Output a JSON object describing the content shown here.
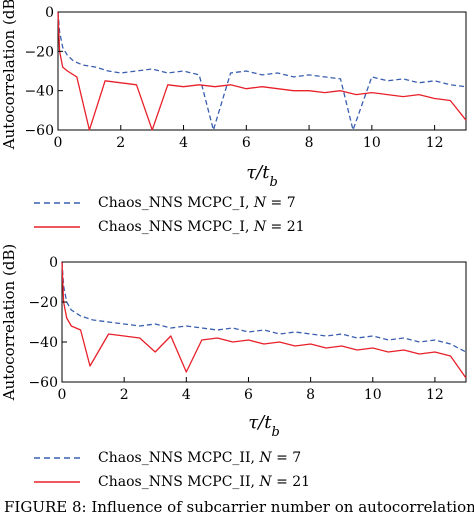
{
  "caption": "FIGURE 8: Influence of subcarrier number on autocorrelation.",
  "chart_data": [
    {
      "type": "line",
      "ylabel": "Autocorrelation (dB)",
      "xlabel": "τ/t_b",
      "xlim": [
        0,
        13
      ],
      "ylim": [
        -60,
        0
      ],
      "xticks": [
        "0",
        "2",
        "4",
        "6",
        "8",
        "10",
        "12"
      ],
      "yticks": [
        "0",
        "-20",
        "-40",
        "-60"
      ],
      "grid": false,
      "legend_position": "below",
      "legend": [
        "Chaos_NNS MCPC_I, N = 7",
        "Chaos_NNS MCPC_I, N = 21"
      ],
      "series": [
        {
          "name": "Chaos_NNS MCPC_I, N = 7",
          "color": "#3a5fb0",
          "style": "dashed",
          "x": [
            0,
            0.05,
            0.15,
            0.3,
            0.5,
            0.8,
            1.2,
            1.6,
            2,
            2.5,
            3,
            3.5,
            4,
            4.5,
            4.95,
            5.5,
            6,
            6.5,
            7,
            7.5,
            8,
            8.5,
            9,
            9.4,
            10,
            10.5,
            11,
            11.5,
            12,
            12.5,
            13
          ],
          "y": [
            0,
            -10,
            -18,
            -22,
            -25,
            -27,
            -28,
            -30,
            -31,
            -30,
            -29,
            -31,
            -30,
            -32,
            -60,
            -31,
            -30,
            -32,
            -31,
            -33,
            -32,
            -33,
            -34,
            -60,
            -33,
            -35,
            -34,
            -36,
            -35,
            -37,
            -38
          ]
        },
        {
          "name": "Chaos_NNS MCPC_I, N = 21",
          "color": "#e8202a",
          "style": "solid",
          "x": [
            0,
            0.05,
            0.15,
            0.3,
            0.6,
            1,
            1.5,
            2,
            2.5,
            3,
            3.5,
            4,
            4.5,
            5,
            5.5,
            6,
            6.5,
            7,
            7.5,
            8,
            8.5,
            9,
            9.5,
            10,
            10.5,
            11,
            11.5,
            12,
            12.5,
            13
          ],
          "y": [
            0,
            -20,
            -28,
            -30,
            -33,
            -60,
            -35,
            -36,
            -37,
            -60,
            -37,
            -38,
            -37,
            -38,
            -37,
            -39,
            -38,
            -39,
            -40,
            -40,
            -41,
            -40,
            -42,
            -41,
            -42,
            -43,
            -42,
            -44,
            -45,
            -55
          ]
        }
      ]
    },
    {
      "type": "line",
      "ylabel": "Autocorrelation (dB)",
      "xlabel": "τ/t_b",
      "xlim": [
        0,
        13
      ],
      "ylim": [
        -60,
        0
      ],
      "xticks": [
        "0",
        "2",
        "4",
        "6",
        "8",
        "10",
        "12"
      ],
      "yticks": [
        "0",
        "-20",
        "-40",
        "-60"
      ],
      "grid": false,
      "legend_position": "below",
      "legend": [
        "Chaos_NNS MCPC_II, N = 7",
        "Chaos_NNS MCPC_II, N = 21"
      ],
      "series": [
        {
          "name": "Chaos_NNS MCPC_II, N = 7",
          "color": "#3a5fb0",
          "style": "dashed",
          "x": [
            0,
            0.05,
            0.15,
            0.3,
            0.6,
            1,
            1.5,
            2,
            2.5,
            3,
            3.5,
            4,
            4.5,
            5,
            5.5,
            6,
            6.5,
            7,
            7.5,
            8,
            8.5,
            9,
            9.5,
            10,
            10.5,
            11,
            11.5,
            12,
            12.5,
            13
          ],
          "y": [
            0,
            -12,
            -20,
            -24,
            -27,
            -29,
            -30,
            -31,
            -32,
            -31,
            -33,
            -32,
            -33,
            -34,
            -33,
            -35,
            -34,
            -36,
            -35,
            -36,
            -37,
            -36,
            -38,
            -37,
            -39,
            -38,
            -40,
            -39,
            -41,
            -45
          ]
        },
        {
          "name": "Chaos_NNS MCPC_II, N = 21",
          "color": "#e8202a",
          "style": "solid",
          "x": [
            0,
            0.05,
            0.15,
            0.3,
            0.6,
            0.9,
            1.5,
            2,
            2.5,
            3,
            3.5,
            4,
            4.5,
            5,
            5.5,
            6,
            6.5,
            7,
            7.5,
            8,
            8.5,
            9,
            9.5,
            10,
            10.5,
            11,
            11.5,
            12,
            12.5,
            13
          ],
          "y": [
            0,
            -20,
            -28,
            -32,
            -34,
            -52,
            -36,
            -37,
            -38,
            -45,
            -37,
            -55,
            -39,
            -38,
            -40,
            -39,
            -41,
            -40,
            -42,
            -41,
            -43,
            -42,
            -44,
            -43,
            -45,
            -44,
            -46,
            -45,
            -47,
            -58
          ]
        }
      ]
    }
  ]
}
